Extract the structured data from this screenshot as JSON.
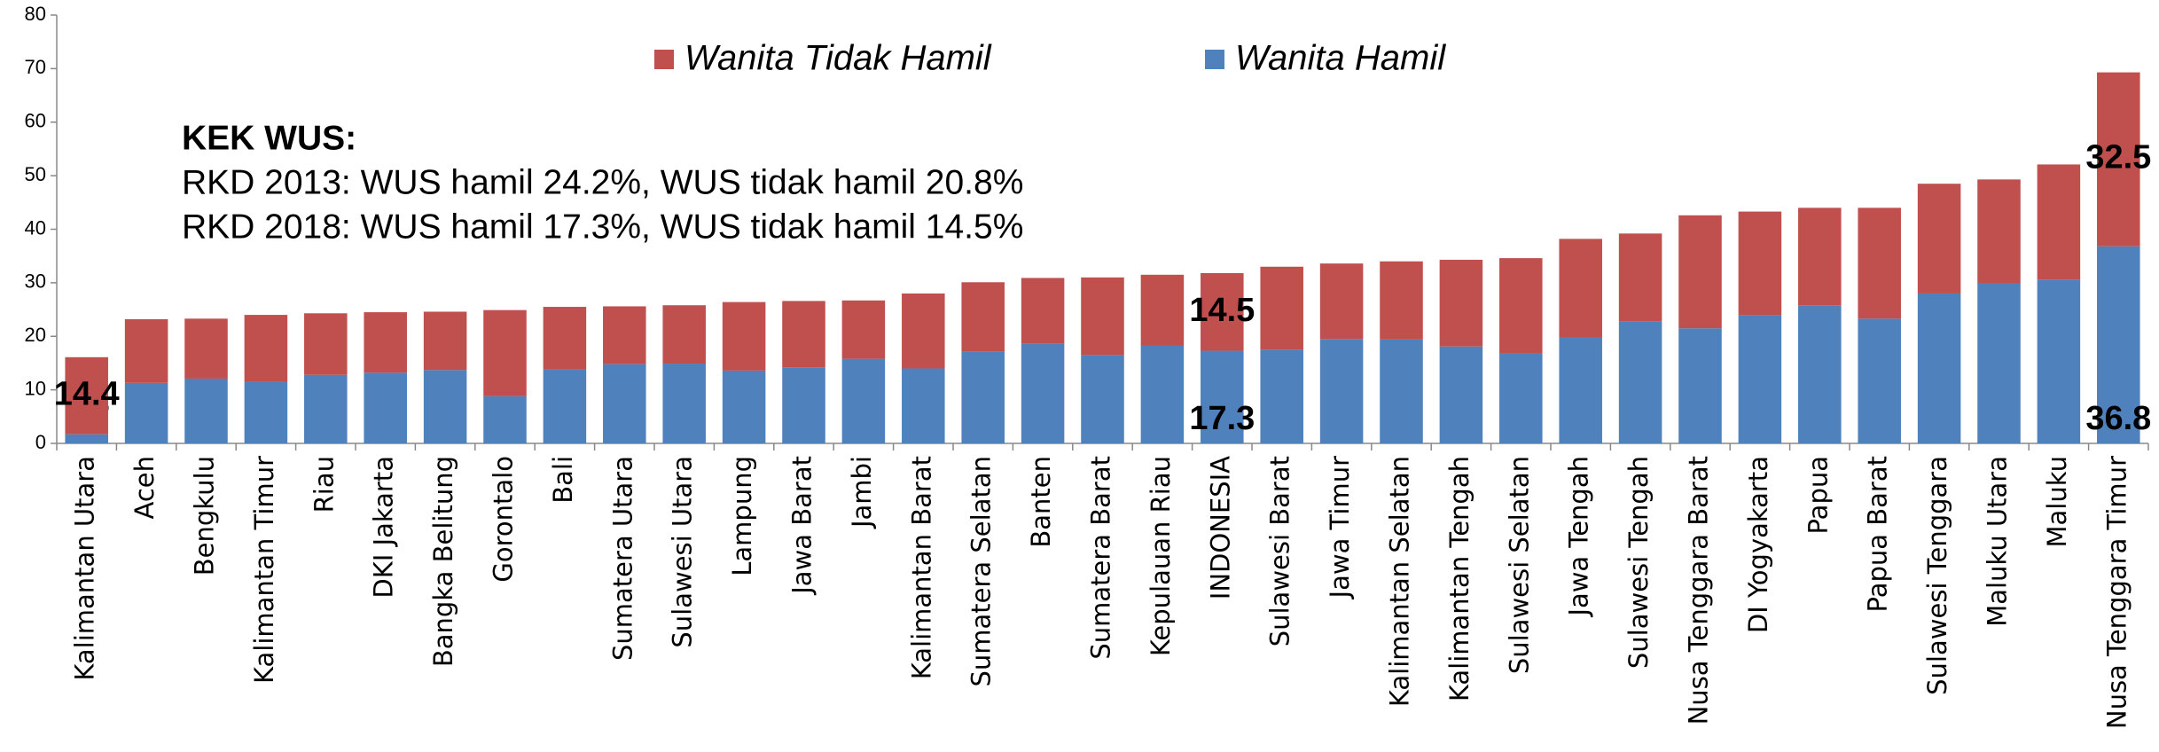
{
  "chart_data": {
    "type": "stacked_bar",
    "annotations": [
      "KEK WUS:",
      "RKD 2013: WUS hamil 24.2%, WUS tidak hamil 20.8%",
      "RKD 2018: WUS hamil 17.3%, WUS tidak hamil 14.5%"
    ],
    "categories": [
      "Kalimantan Utara",
      "Aceh",
      "Bengkulu",
      "Kalimantan Timur",
      "Riau",
      "DKI Jakarta",
      "Bangka Belitung",
      "Gorontalo",
      "Bali",
      "Sumatera Utara",
      "Sulawesi Utara",
      "Lampung",
      "Jawa Barat",
      "Jambi",
      "Kalimantan Barat",
      "Sumatera Selatan",
      "Banten",
      "Sumatera Barat",
      "Kepulauan Riau",
      "INDONESIA",
      "Sulawesi Barat",
      "Jawa Timur",
      "Kalimantan Selatan",
      "Kalimantan Tengah",
      "Sulawesi Selatan",
      "Jawa Tengah",
      "Sulawesi Tengah",
      "Nusa Tenggara Barat",
      "DI Yogyakarta",
      "Papua",
      "Papua Barat",
      "Sulawesi Tenggara",
      "Maluku Utara",
      "Maluku",
      "Nusa Tenggara Timur"
    ],
    "series": [
      {
        "name": "Wanita Hamil",
        "color": "#4f81bd",
        "values": [
          1.7,
          11.3,
          12.1,
          11.5,
          12.8,
          13.2,
          13.7,
          8.8,
          13.9,
          14.8,
          14.9,
          13.6,
          14.2,
          15.8,
          14,
          17.1,
          18.6,
          16.5,
          18.3,
          17.3,
          17.5,
          19.5,
          19.4,
          18.1,
          16.8,
          19.8,
          22.8,
          21.5,
          24,
          25.8,
          23.3,
          28,
          29.9,
          30.6,
          36.8
        ],
        "value_labels": [
          "1.7",
          null,
          null,
          null,
          null,
          null,
          null,
          null,
          null,
          null,
          null,
          null,
          null,
          null,
          null,
          null,
          null,
          null,
          null,
          "17.3",
          null,
          null,
          null,
          null,
          null,
          null,
          null,
          null,
          null,
          null,
          null,
          null,
          null,
          null,
          "36.8"
        ]
      },
      {
        "name": "Wanita Tidak Hamil",
        "color": "#c0504d",
        "values": [
          14.4,
          11.9,
          11.2,
          12.5,
          11.5,
          11.3,
          10.9,
          16.1,
          11.6,
          10.8,
          10.9,
          12.8,
          12.4,
          10.9,
          14,
          13,
          12.3,
          14.5,
          13.2,
          14.5,
          15.5,
          14.1,
          14.6,
          16.2,
          17.8,
          18.4,
          16.4,
          21.1,
          19.3,
          18.2,
          20.7,
          20.5,
          19.4,
          21.5,
          32.5
        ],
        "value_labels": [
          "14.4",
          null,
          null,
          null,
          null,
          null,
          null,
          null,
          null,
          null,
          null,
          null,
          null,
          null,
          null,
          null,
          null,
          null,
          null,
          "14.5",
          null,
          null,
          null,
          null,
          null,
          null,
          null,
          null,
          null,
          null,
          null,
          null,
          null,
          null,
          "32.5"
        ]
      }
    ],
    "ylim": [
      0,
      80
    ],
    "yticks": [
      0,
      10,
      20,
      30,
      40,
      50,
      60,
      70,
      80
    ],
    "grid": false,
    "legend": "top"
  }
}
